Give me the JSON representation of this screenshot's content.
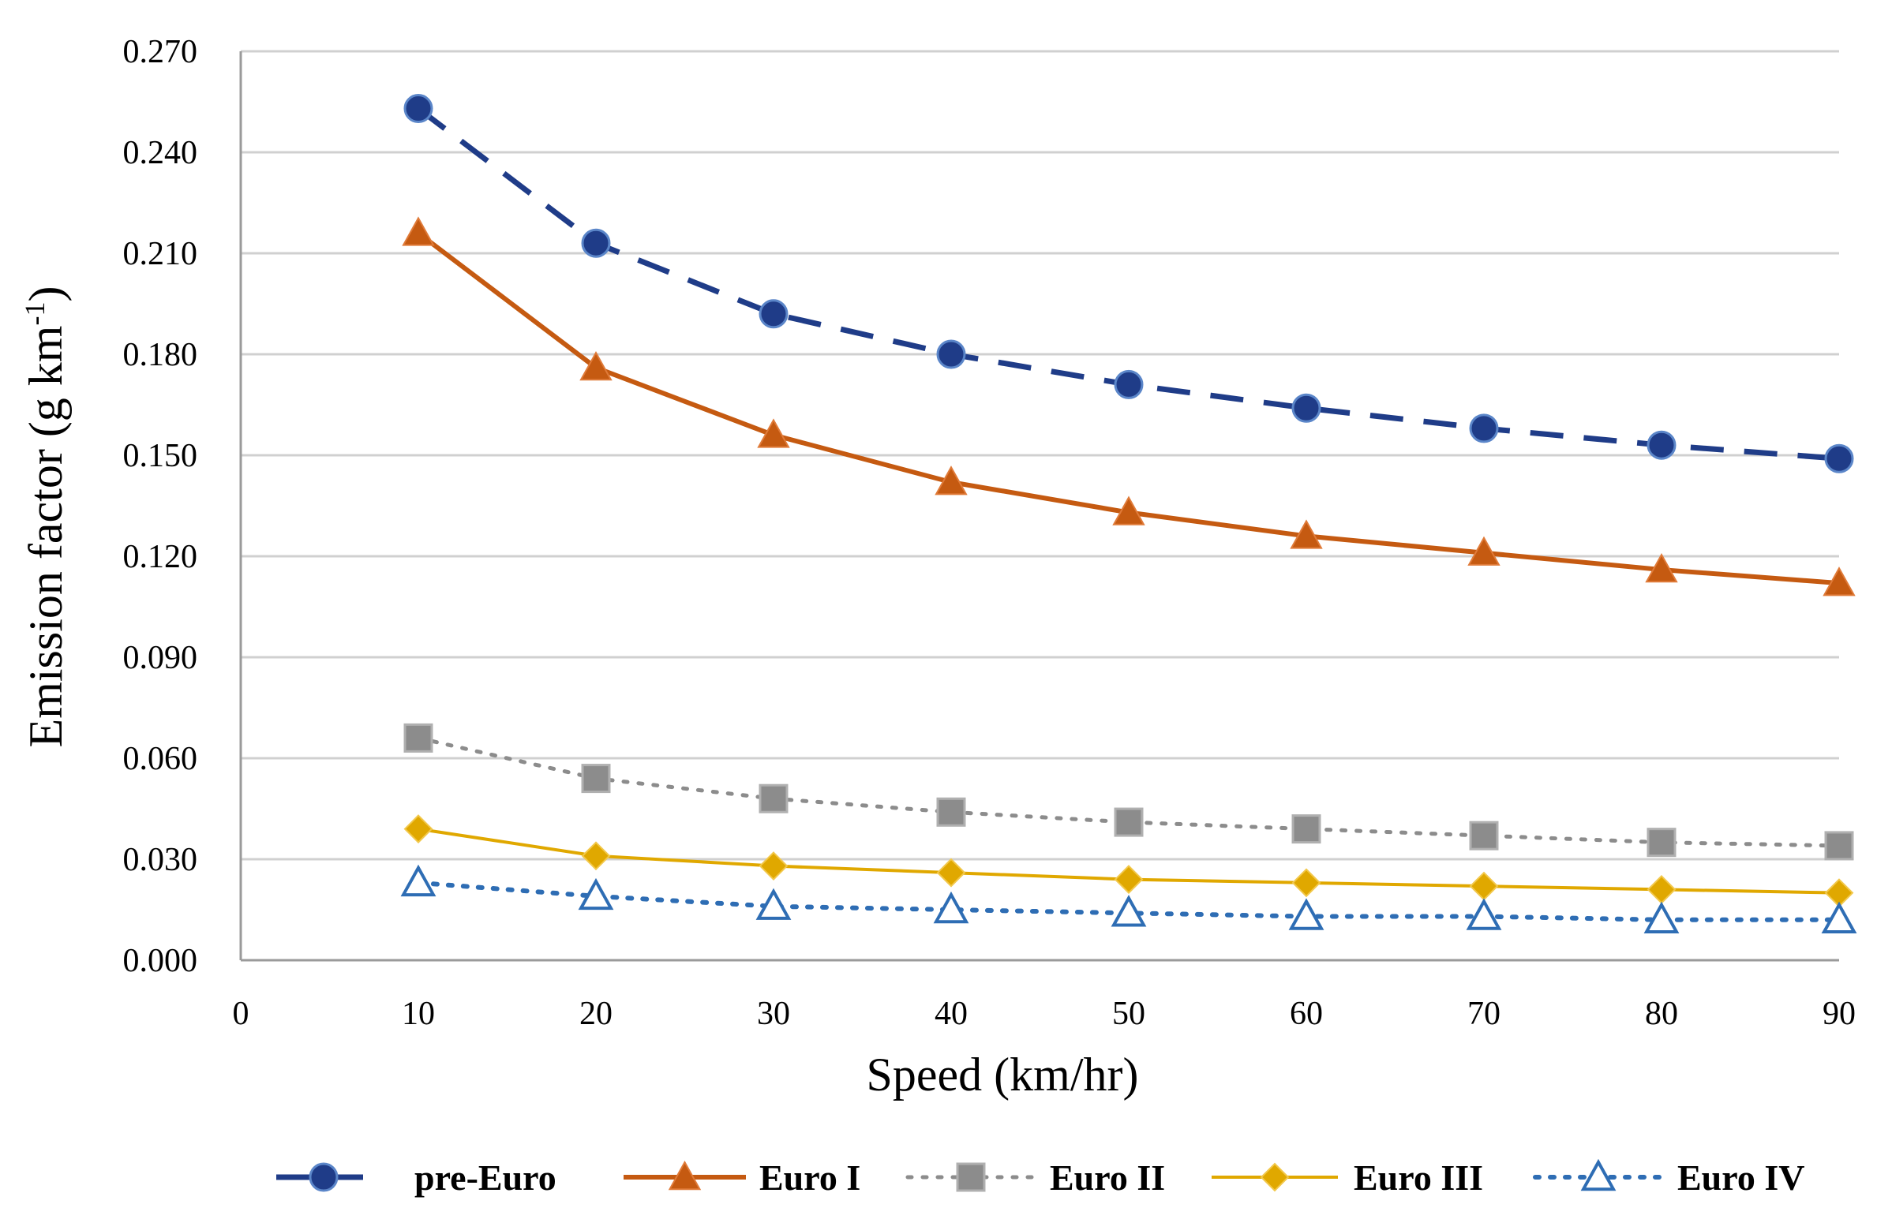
{
  "chart_data": {
    "type": "line",
    "title": "",
    "xlabel": "Speed  (km/hr)",
    "ylabel": "Emission factor (g km",
    "ylabel_superscript": "-1",
    "ylabel_close": ")",
    "xlim": [
      0,
      90
    ],
    "ylim": [
      0,
      0.27
    ],
    "x_ticks": [
      "0",
      "10",
      "20",
      "30",
      "40",
      "50",
      "60",
      "70",
      "80",
      "90"
    ],
    "x_tick_values": [
      0,
      10,
      20,
      30,
      40,
      50,
      60,
      70,
      80,
      90
    ],
    "y_ticks": [
      "0.000",
      "0.030",
      "0.060",
      "0.090",
      "0.120",
      "0.150",
      "0.180",
      "0.210",
      "0.240",
      "0.270"
    ],
    "y_tick_values": [
      0,
      0.03,
      0.06,
      0.09,
      0.12,
      0.15,
      0.18,
      0.21,
      0.24,
      0.27
    ],
    "grid": true,
    "legend_position": "bottom",
    "x": [
      10,
      20,
      30,
      40,
      50,
      60,
      70,
      80,
      90
    ],
    "series": [
      {
        "name": "pre-Euro",
        "color": "#1f3c88",
        "dash": "dashed",
        "marker": "circle",
        "values": [
          0.253,
          0.213,
          0.192,
          0.18,
          0.171,
          0.164,
          0.158,
          0.153,
          0.149
        ]
      },
      {
        "name": "Euro I",
        "color": "#c55a11",
        "dash": "solid",
        "marker": "triangle",
        "values": [
          0.216,
          0.176,
          0.156,
          0.142,
          0.133,
          0.126,
          0.121,
          0.116,
          0.112
        ]
      },
      {
        "name": "Euro II",
        "color": "#8c8c8c",
        "dash": "dotted",
        "marker": "square",
        "values": [
          0.066,
          0.054,
          0.048,
          0.044,
          0.041,
          0.039,
          0.037,
          0.035,
          0.034
        ]
      },
      {
        "name": "Euro III",
        "color": "#e0a800",
        "dash": "solid",
        "marker": "diamond",
        "values": [
          0.039,
          0.031,
          0.028,
          0.026,
          0.024,
          0.023,
          0.022,
          0.021,
          0.02
        ]
      },
      {
        "name": "Euro IV",
        "color": "#2e6db4",
        "dash": "dotted",
        "marker": "triangle-open",
        "values": [
          0.023,
          0.019,
          0.016,
          0.015,
          0.014,
          0.013,
          0.013,
          0.012,
          0.012
        ]
      }
    ]
  }
}
